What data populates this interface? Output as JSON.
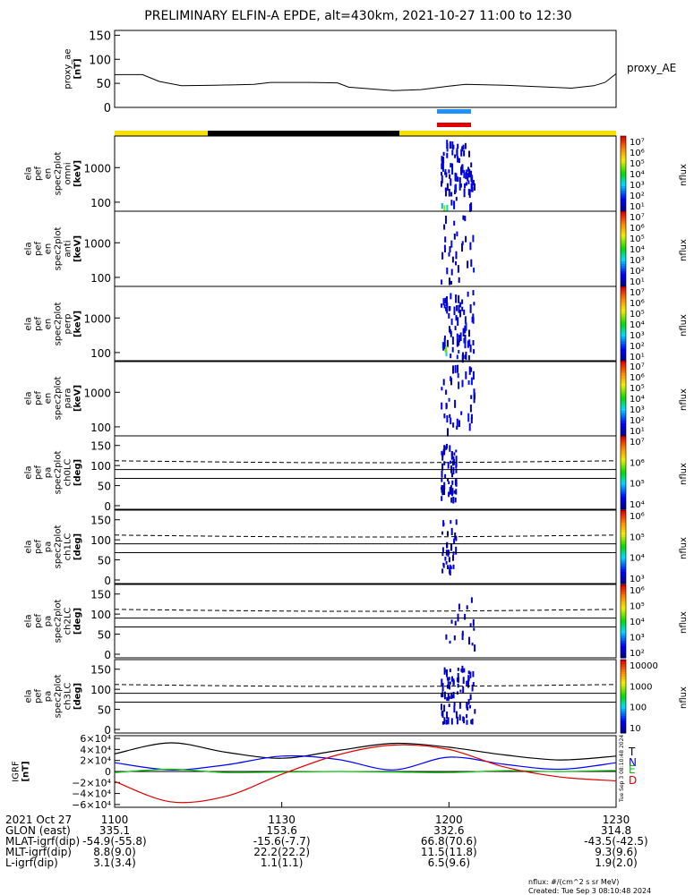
{
  "title": "PRELIMINARY ELFIN-A EPDE, alt=430km, 2021-10-27 11:00 to 12:30",
  "colors": {
    "yellow": "#f7e000",
    "black": "#000000",
    "blue_bar": "#1e90ff",
    "red_bar": "#e00000",
    "igrf_t": "#000000",
    "igrf_n": "#0000ff",
    "igrf_e": "#00c000",
    "igrf_d": "#e00000"
  },
  "panels": {
    "proxy_ae": {
      "ylabel": [
        "proxy_ae",
        "[nT]"
      ],
      "legend": "proxy_AE",
      "ticks": [
        "150",
        "100",
        "50",
        "0"
      ]
    },
    "spectra": [
      {
        "ylabel": [
          "ela",
          "pef",
          "en",
          "spec2plot",
          "omni",
          "[keV]"
        ],
        "ticks": [
          "1000",
          "100"
        ],
        "cbar_label": "nflux"
      },
      {
        "ylabel": [
          "ela",
          "pef",
          "en",
          "spec2plot",
          "anti",
          "[keV]"
        ],
        "ticks": [
          "1000",
          "100"
        ],
        "cbar_label": "nflux"
      },
      {
        "ylabel": [
          "ela",
          "pef",
          "en",
          "spec2plot",
          "perp",
          "[keV]"
        ],
        "ticks": [
          "1000",
          "100"
        ],
        "cbar_label": "nflux"
      },
      {
        "ylabel": [
          "ela",
          "pef",
          "en",
          "spec2plot",
          "para",
          "[keV]"
        ],
        "ticks": [
          "1000",
          "100"
        ],
        "cbar_label": "nflux"
      }
    ],
    "pitch": [
      {
        "ylabel": [
          "ela",
          "pef",
          "pa",
          "spec2plot",
          "ch0LC",
          "[deg]"
        ],
        "ticks": [
          "150",
          "100",
          "50",
          "0"
        ],
        "cbar_label": "nflux"
      },
      {
        "ylabel": [
          "ela",
          "pef",
          "pa",
          "spec2plot",
          "ch1LC",
          "[deg]"
        ],
        "ticks": [
          "150",
          "100",
          "50",
          "0"
        ],
        "cbar_label": "nflux"
      },
      {
        "ylabel": [
          "ela",
          "pef",
          "pa",
          "spec2plot",
          "ch2LC",
          "[deg]"
        ],
        "ticks": [
          "150",
          "100",
          "50",
          "0"
        ],
        "cbar_label": "nflux"
      },
      {
        "ylabel": [
          "ela",
          "pef",
          "pa",
          "spec2plot",
          "ch3LC",
          "[deg]"
        ],
        "ticks": [
          "150",
          "100",
          "50",
          "0"
        ],
        "cbar_label": "nflux"
      }
    ],
    "igrf": {
      "ylabel": [
        "IGRF",
        "[nT]"
      ],
      "ticks": [
        "6×10⁴",
        "4×10⁴",
        "2×10⁴",
        "0",
        "−2×10⁴",
        "−4×10⁴",
        "−6×10⁴"
      ],
      "legend": [
        "T",
        "N",
        "E",
        "D"
      ],
      "side_text": "Tue Sep  3 08:10:48 2024"
    }
  },
  "colorbars": {
    "spec_labels": [
      "10⁷",
      "10⁶",
      "10⁵",
      "10⁴",
      "10³",
      "10²",
      "10¹"
    ],
    "pa0_labels": [
      "10⁷",
      "10⁶",
      "10⁵",
      "10⁴"
    ],
    "pa1_labels": [
      "10⁶",
      "10⁵",
      "10⁴",
      "10³"
    ],
    "pa2_labels": [
      "10⁶",
      "10⁵",
      "10⁴",
      "10³",
      "10²"
    ],
    "pa3_labels": [
      "10000",
      "1000",
      "100",
      "10"
    ]
  },
  "xaxis": {
    "time_label": "2021 Oct 27",
    "rows": [
      {
        "name": "GLON (east)",
        "values": [
          "335.1",
          "153.6",
          "332.6",
          "314.8"
        ]
      },
      {
        "name": "MLAT-igrf(dip)",
        "values": [
          "-54.9(-55.8)",
          "-15.6(-7.7)",
          "66.8(70.6)",
          "-43.5(-42.5)"
        ]
      },
      {
        "name": "MLT-igrf(dip)",
        "values": [
          "8.8(9.0)",
          "22.2(22.2)",
          "11.5(11.8)",
          "9.3(9.6)"
        ]
      },
      {
        "name": "L-igrf(dip)",
        "values": [
          "3.1(3.4)",
          "1.1(1.1)",
          "6.5(9.6)",
          "1.9(2.0)"
        ]
      }
    ],
    "times": [
      "1100",
      "1130",
      "1200",
      "1230"
    ]
  },
  "footer": {
    "units": "nflux: #/(cm^2 s sr MeV)",
    "created": "Created: Tue Sep  3 08:10:48 2024"
  },
  "chart_data": [
    {
      "type": "line",
      "title": "PRELIMINARY ELFIN-A EPDE, alt=430km, 2021-10-27 11:00 to 12:30",
      "ylabel": "proxy_ae [nT]",
      "ylim": [
        0,
        160
      ],
      "xlim": [
        "11:00",
        "12:30"
      ],
      "series": [
        {
          "name": "proxy_AE",
          "x": [
            0,
            5,
            8,
            12,
            18,
            25,
            28,
            35,
            40,
            42,
            50,
            55,
            60,
            63,
            70,
            78,
            82,
            86,
            88,
            90
          ],
          "y": [
            68,
            68,
            54,
            45,
            46,
            48,
            52,
            52,
            51,
            42,
            35,
            37,
            44,
            48,
            46,
            42,
            40,
            45,
            52,
            70
          ]
        }
      ]
    },
    {
      "type": "heatmap",
      "ylabel": "ela pef en spec2plot omni [keV]",
      "ylim_log": [
        60,
        6000
      ],
      "time_window_min": [
        58.5,
        64.5
      ],
      "colorbar_label": "nflux",
      "colorbar_range": [
        "10¹",
        "10⁷"
      ]
    },
    {
      "type": "line",
      "ylabel": "IGRF [nT]",
      "ylim": [
        -65000,
        65000
      ],
      "xlim": [
        "11:00",
        "12:30"
      ],
      "series": [
        {
          "name": "T",
          "x": [
            0,
            10,
            20,
            30,
            40,
            50,
            60,
            70,
            80,
            90
          ],
          "y": [
            32000,
            52000,
            35000,
            24000,
            38000,
            51000,
            44000,
            30000,
            21000,
            28000
          ]
        },
        {
          "name": "N",
          "x": [
            0,
            10,
            20,
            30,
            40,
            50,
            60,
            70,
            80,
            90
          ],
          "y": [
            16000,
            3000,
            12000,
            28000,
            22000,
            3000,
            26000,
            13000,
            4000,
            16000
          ]
        },
        {
          "name": "E",
          "x": [
            0,
            10,
            20,
            30,
            40,
            50,
            60,
            70,
            80,
            90
          ],
          "y": [
            -2000,
            4000,
            -2000,
            -1000,
            0,
            -1000,
            -2000,
            1500,
            0,
            2000
          ]
        },
        {
          "name": "D",
          "x": [
            0,
            10,
            20,
            30,
            40,
            50,
            60,
            70,
            80,
            90
          ],
          "y": [
            -18000,
            -55000,
            -45000,
            -5000,
            30000,
            48000,
            40000,
            8000,
            -10000,
            -17000
          ]
        }
      ]
    }
  ]
}
